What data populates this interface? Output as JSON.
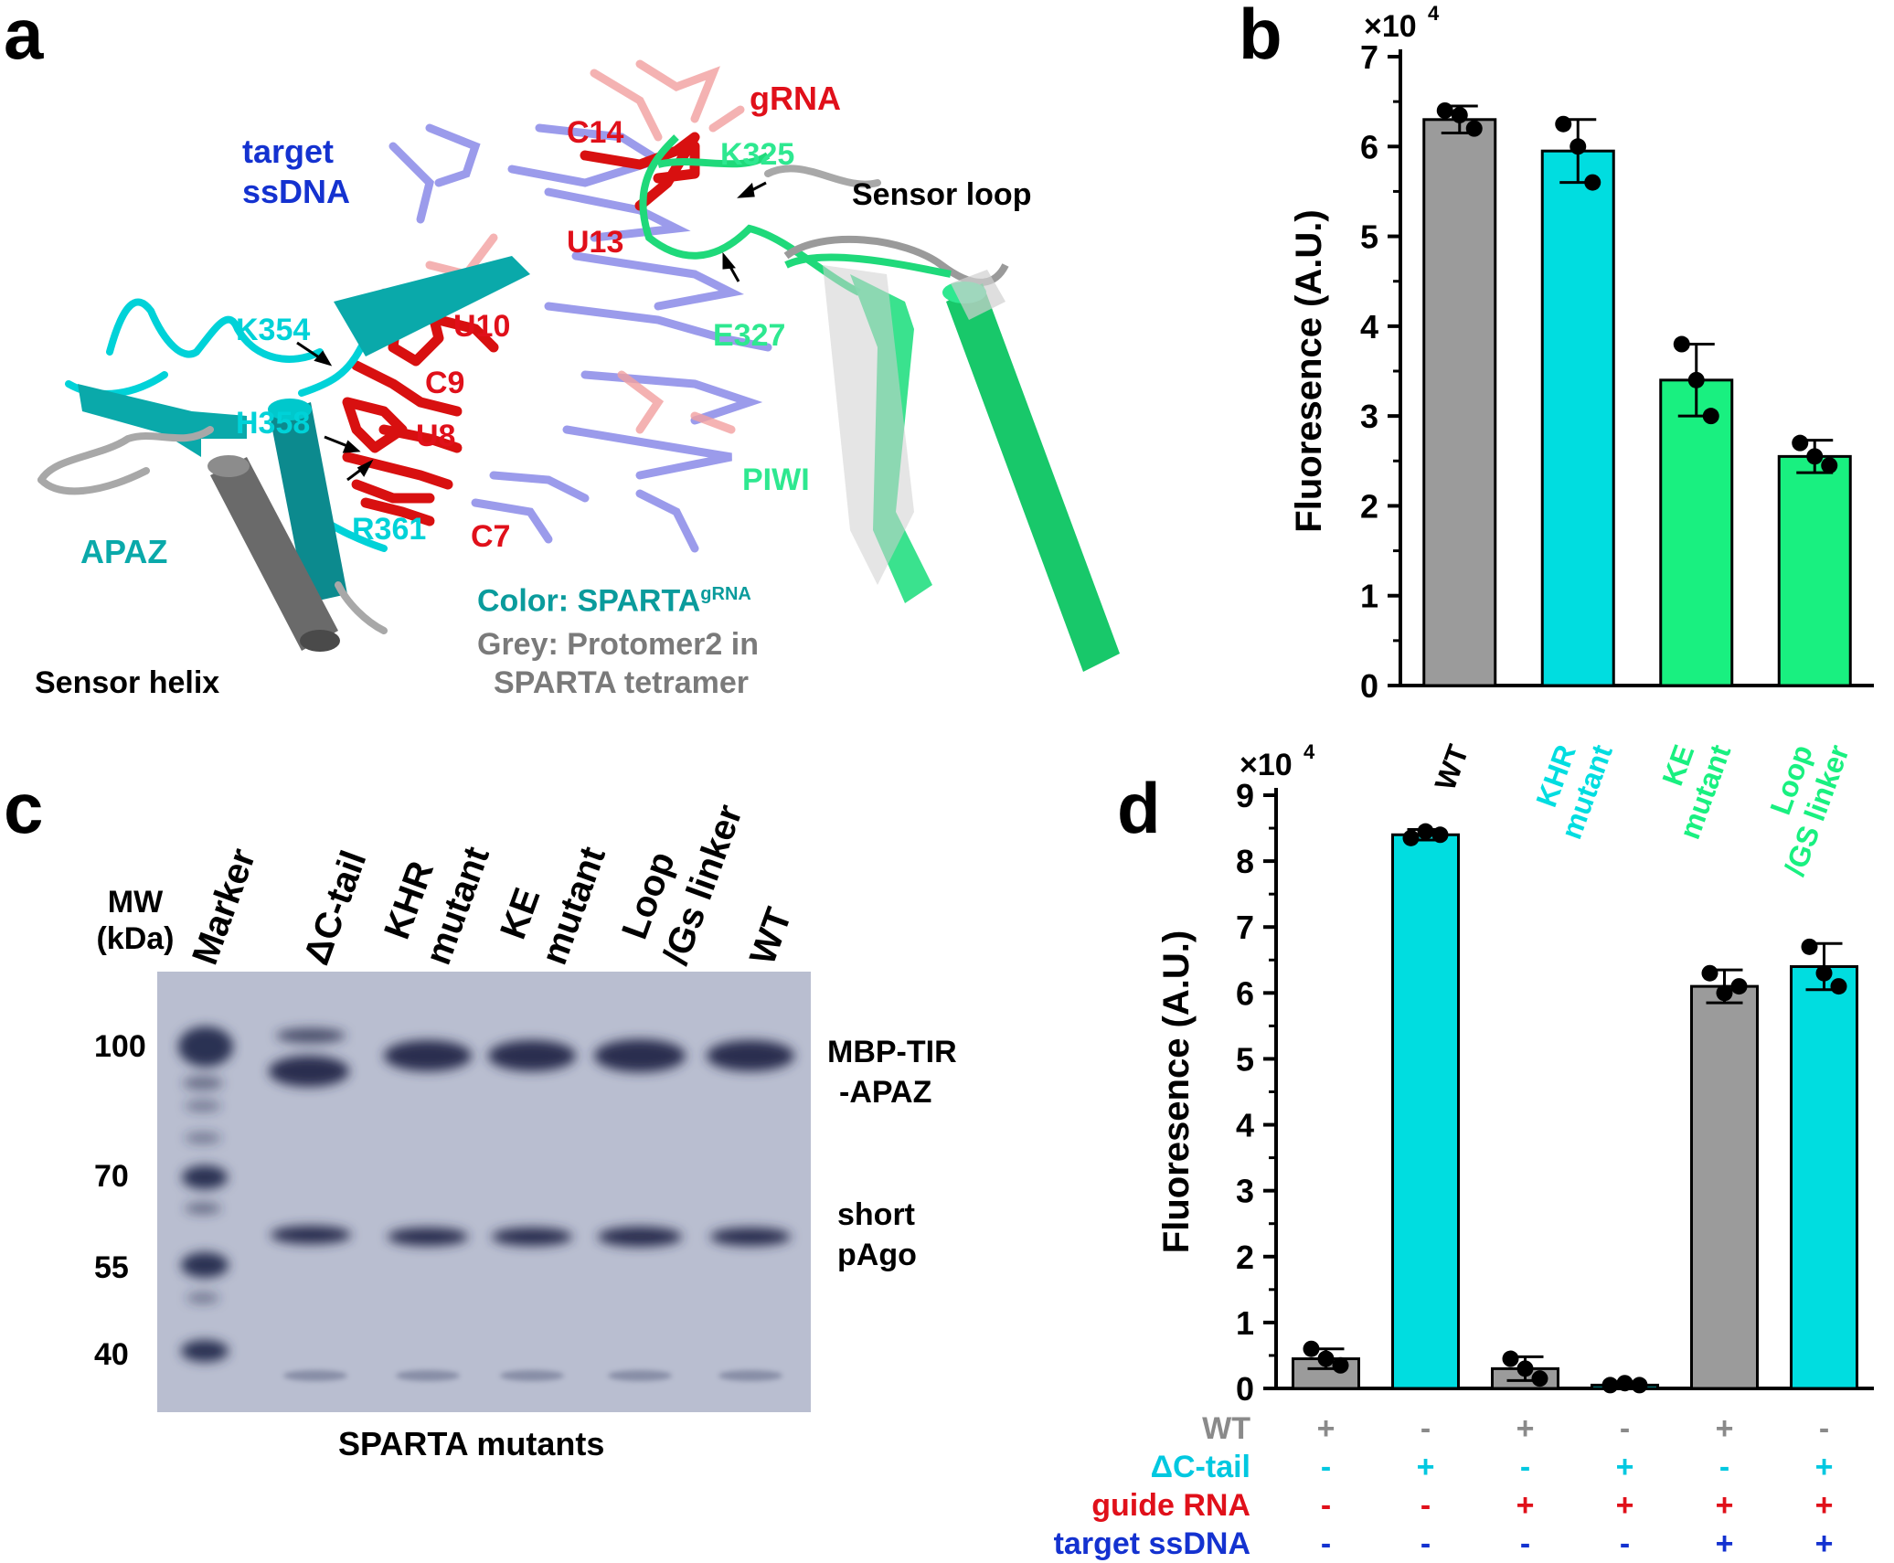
{
  "colors": {
    "grey": "#9b9b9b",
    "cyan": "#00dde0",
    "green": "#19f080",
    "red": "#e0101a",
    "blue": "#1432d0",
    "dark_cyan": "#0a9b9c"
  },
  "panels": {
    "a": "a",
    "b": "b",
    "c": "c",
    "d": "d"
  },
  "panel_a": {
    "labels": {
      "grna": "gRNA",
      "target": "target",
      "ssdna": "ssDNA",
      "c14": "C14",
      "k325": "K325",
      "sensor_loop": "Sensor loop",
      "u13": "U13",
      "k354": "K354",
      "u10": "U10",
      "e327": "E327",
      "c9": "C9",
      "h358": "H358",
      "u8": "U8",
      "piwi": "PIWI",
      "r361": "R361",
      "c7": "C7",
      "apaz": "APAZ",
      "sensor_helix": "Sensor helix"
    },
    "legend": {
      "color_prefix": "Color: SPARTA",
      "color_sup": "gRNA",
      "grey_line1": "Grey: Protomer2 in",
      "grey_line2": "SPARTA tetramer"
    }
  },
  "panel_c": {
    "mw_label_line1": "MW",
    "mw_label_line2": "(kDa)",
    "lanes": [
      {
        "l1": "Marker",
        "l2": ""
      },
      {
        "l1": "ΔC-tail",
        "l2": ""
      },
      {
        "l1": "KHR",
        "l2": "mutant"
      },
      {
        "l1": "KE",
        "l2": "mutant"
      },
      {
        "l1": "Loop",
        "l2": "/Gs linker"
      },
      {
        "l1": "WT",
        "l2": ""
      }
    ],
    "mw_markers": [
      "100",
      "70",
      "55",
      "40"
    ],
    "band_labels": {
      "mbp_line1": "MBP-TIR",
      "mbp_line2": "-APAZ",
      "pago_line1": "short",
      "pago_line2": "pAgo"
    },
    "xlabel": "SPARTA mutants"
  },
  "chart_data": [
    {
      "panel": "b",
      "type": "bar",
      "ylabel": "Fluoresence (A.U.)",
      "y_multiplier": "×10",
      "y_multiplier_exp": "4",
      "ylim": [
        0,
        7
      ],
      "yticks": [
        "0",
        "1",
        "2",
        "3",
        "4",
        "5",
        "6",
        "7"
      ],
      "categories": [
        {
          "line1": "WT",
          "line2": "",
          "color": "#000000"
        },
        {
          "line1": "KHR",
          "line2": "mutant",
          "color": "#00dde0"
        },
        {
          "line1": "KE",
          "line2": "mutant",
          "color": "#19f080"
        },
        {
          "line1": "Loop",
          "line2": "/GS linker",
          "color": "#19f080"
        }
      ],
      "values": [
        6.3,
        5.95,
        3.4,
        2.55
      ],
      "errors": [
        0.15,
        0.35,
        0.4,
        0.18
      ],
      "points": [
        [
          6.4,
          6.35,
          6.2
        ],
        [
          6.25,
          6.0,
          5.6
        ],
        [
          3.8,
          3.4,
          3.0
        ],
        [
          2.7,
          2.55,
          2.45
        ]
      ],
      "bar_colors": [
        "#9b9b9b",
        "#00dde0",
        "#19f080",
        "#19f080"
      ]
    },
    {
      "panel": "d",
      "type": "bar",
      "ylabel": "Fluoresence (A.U.)",
      "y_multiplier": "×10",
      "y_multiplier_exp": "4",
      "ylim": [
        0,
        9
      ],
      "yticks": [
        "0",
        "1",
        "2",
        "3",
        "4",
        "5",
        "6",
        "7",
        "8",
        "9"
      ],
      "values": [
        0.45,
        8.4,
        0.3,
        0.05,
        6.1,
        6.4
      ],
      "errors": [
        0.15,
        0.08,
        0.18,
        0.04,
        0.25,
        0.35
      ],
      "points": [
        [
          0.6,
          0.45,
          0.35
        ],
        [
          8.35,
          8.45,
          8.4
        ],
        [
          0.45,
          0.3,
          0.15
        ],
        [
          0.05,
          0.08,
          0.05
        ],
        [
          6.3,
          6.0,
          6.1
        ],
        [
          6.7,
          6.3,
          6.1
        ]
      ],
      "bar_colors": [
        "#9b9b9b",
        "#00dde0",
        "#9b9b9b",
        "#00dde0",
        "#9b9b9b",
        "#00dde0"
      ],
      "conditions": [
        {
          "label": "WT",
          "color": "#8a8a8a",
          "values": [
            "+",
            "-",
            "+",
            "-",
            "+",
            "-"
          ]
        },
        {
          "label": "ΔC-tail",
          "color": "#00c8e0",
          "values": [
            "-",
            "+",
            "-",
            "+",
            "-",
            "+"
          ]
        },
        {
          "label": "guide RNA",
          "color": "#e0101a",
          "values": [
            "-",
            "-",
            "+",
            "+",
            "+",
            "+"
          ]
        },
        {
          "label": "target  ssDNA",
          "color": "#1432d0",
          "values": [
            "-",
            "-",
            "-",
            "-",
            "+",
            "+"
          ]
        }
      ]
    }
  ]
}
